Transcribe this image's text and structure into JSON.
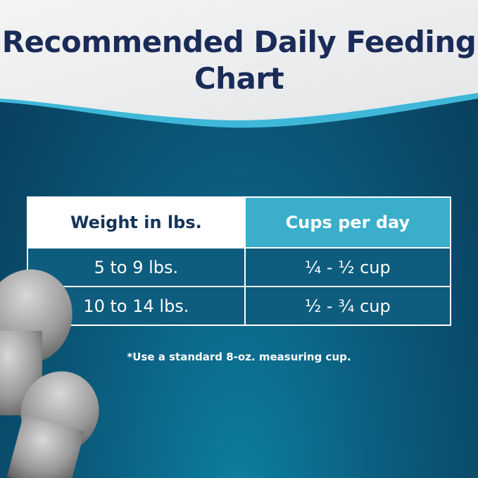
{
  "title": "Recommended Daily Feeding Chart",
  "table": {
    "headers": [
      "Weight in lbs.",
      "Cups per day"
    ],
    "rows": [
      [
        "5 to 9 lbs.",
        "¼ - ½ cup"
      ],
      [
        "10 to 14 lbs.",
        "½ - ¾ cup"
      ]
    ]
  },
  "note": "*Use a standard 8-oz. measuring cup.",
  "colors": {
    "title": "#1b2b58",
    "header_accent": "#3aaecb",
    "row_bg": "#0e5c7e",
    "background": "#0a4564"
  }
}
